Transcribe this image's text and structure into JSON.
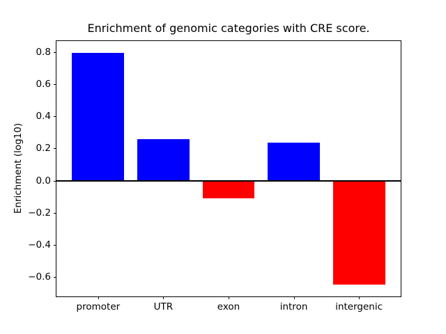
{
  "figure": {
    "background": "#ffffff",
    "axis_color": "#000000"
  },
  "chart_data": {
    "type": "bar",
    "title": "Enrichment of genomic categories with CRE score.",
    "xlabel": "",
    "ylabel": "Enrichment (log10)",
    "categories": [
      "promoter",
      "UTR",
      "exon",
      "intron",
      "intergenic"
    ],
    "values": [
      0.795,
      0.26,
      -0.11,
      0.235,
      -0.647
    ],
    "bar_colors": [
      "#0000ff",
      "#0000ff",
      "#ff0000",
      "#0000ff",
      "#ff0000"
    ],
    "positive_color": "#0000ff",
    "negative_color": "#ff0000",
    "ytick_values": [
      0.8,
      0.6,
      0.4,
      0.2,
      0.0,
      -0.2,
      -0.4,
      -0.6
    ],
    "ytick_labels": [
      "0.8",
      "0.6",
      "0.4",
      "0.2",
      "0.0",
      "−0.2",
      "−0.4",
      "−0.6"
    ],
    "ylim": [
      -0.72,
      0.868
    ],
    "xlim": [
      -0.64,
      4.64
    ],
    "bar_width": 0.8,
    "grid": false,
    "legend": false,
    "zero_line": true
  }
}
